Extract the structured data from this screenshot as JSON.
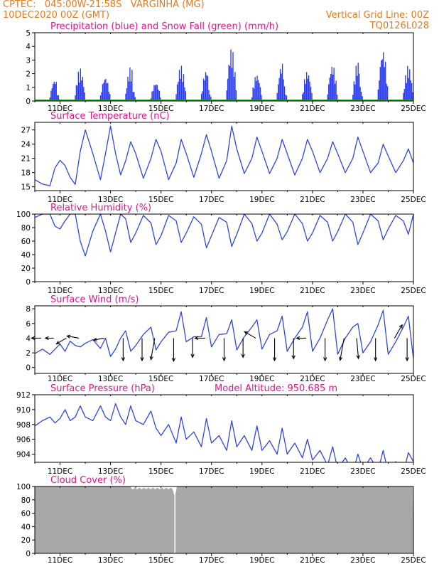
{
  "header": {
    "line1_left": "CPTEC:   045:00W-21:58S   VARGINHA (MG)",
    "line2_left": "10DEC2020 00Z (GMT)",
    "line2_right": "Vertical Grid Line: 00Z",
    "line3_right": "TQ0126L028"
  },
  "colors": {
    "header": "#e8781e",
    "title": "#e0148c",
    "line": "#3046e0",
    "precip": "#2a3af0",
    "snow": "#1aa01a",
    "cloud": "#a8a8a8",
    "frame": "#000000"
  },
  "x_ticks": [
    "11DEC",
    "13DEC",
    "15DEC",
    "17DEC",
    "19DEC",
    "21DEC",
    "23DEC",
    "25DEC"
  ],
  "chart_data": [
    {
      "id": "precip",
      "type": "bar",
      "title": "Precipitation (blue) and Snow Fall (green) (mm/h)",
      "ylim": [
        0,
        5
      ],
      "yticks": [
        "0",
        "1",
        "2",
        "3",
        "4",
        "5"
      ],
      "ytick_values": [
        0,
        1,
        2,
        3,
        4,
        5
      ],
      "xlim_days": [
        10,
        25
      ],
      "day_peaks": [
        {
          "day": 10,
          "value": 1.6
        },
        {
          "day": 11,
          "value": 2.4
        },
        {
          "day": 12,
          "value": 1.8
        },
        {
          "day": 13,
          "value": 2.5
        },
        {
          "day": 14,
          "value": 1.4
        },
        {
          "day": 15,
          "value": 2.6
        },
        {
          "day": 16,
          "value": 2.3
        },
        {
          "day": 17,
          "value": 3.9
        },
        {
          "day": 18,
          "value": 2.0
        },
        {
          "day": 19,
          "value": 2.8
        },
        {
          "day": 20,
          "value": 2.2
        },
        {
          "day": 21,
          "value": 2.7
        },
        {
          "day": 22,
          "value": 2.9
        },
        {
          "day": 23,
          "value": 3.8
        },
        {
          "day": 24,
          "value": 2.6
        }
      ],
      "snow": 0
    },
    {
      "id": "temp",
      "type": "line",
      "title": "Surface Temperature (nC)",
      "ylim": [
        14.2,
        28.6
      ],
      "yticks": [
        "15",
        "18",
        "21",
        "24",
        "27"
      ],
      "ytick_values": [
        15,
        18,
        21,
        24,
        27
      ],
      "x_days": [
        10.0,
        10.3,
        10.6,
        10.8,
        11.0,
        11.2,
        11.4,
        11.6,
        11.8,
        12.0,
        12.3,
        12.6,
        12.8,
        13.0,
        13.2,
        13.4,
        13.6,
        13.8,
        14.0,
        14.3,
        14.6,
        14.8,
        15.0,
        15.3,
        15.6,
        15.8,
        16.0,
        16.3,
        16.6,
        16.8,
        17.0,
        17.3,
        17.6,
        17.8,
        18.0,
        18.3,
        18.6,
        18.8,
        19.0,
        19.3,
        19.6,
        19.8,
        20.0,
        20.3,
        20.6,
        20.8,
        21.0,
        21.3,
        21.6,
        21.8,
        22.0,
        22.3,
        22.6,
        22.8,
        23.0,
        23.3,
        23.6,
        23.8,
        24.0,
        24.3,
        24.6,
        24.8,
        25.0
      ],
      "values": [
        16.5,
        15.6,
        15.2,
        19.0,
        20.6,
        19.5,
        17.0,
        15.5,
        22.5,
        27.0,
        22.0,
        16.5,
        22.0,
        27.8,
        22.0,
        17.5,
        20.5,
        24.5,
        22.0,
        16.8,
        21.0,
        25.0,
        22.5,
        16.5,
        20.0,
        25.0,
        22.0,
        17.0,
        22.0,
        26.0,
        22.5,
        16.8,
        20.5,
        27.8,
        23.0,
        17.8,
        21.0,
        25.5,
        22.5,
        17.8,
        21.0,
        25.0,
        22.0,
        17.5,
        21.0,
        25.0,
        22.5,
        18.0,
        21.0,
        24.5,
        22.0,
        18.0,
        21.0,
        25.5,
        22.5,
        18.0,
        20.0,
        24.0,
        21.5,
        18.0,
        20.5,
        23.0,
        20.0
      ]
    },
    {
      "id": "rh",
      "type": "line",
      "title": "Relative Humidity (%)",
      "ylim": [
        0,
        100
      ],
      "yticks": [
        "0",
        "20",
        "40",
        "60",
        "80",
        "100"
      ],
      "ytick_values": [
        0,
        20,
        40,
        60,
        80,
        100
      ],
      "x_days": [
        10.0,
        10.3,
        10.6,
        10.8,
        11.0,
        11.2,
        11.4,
        11.6,
        11.8,
        12.0,
        12.3,
        12.6,
        12.8,
        13.0,
        13.2,
        13.4,
        13.6,
        13.8,
        14.0,
        14.3,
        14.6,
        14.8,
        15.0,
        15.3,
        15.6,
        15.8,
        16.0,
        16.3,
        16.6,
        16.8,
        17.0,
        17.3,
        17.6,
        17.8,
        18.0,
        18.3,
        18.6,
        18.8,
        19.0,
        19.3,
        19.6,
        19.8,
        20.0,
        20.3,
        20.6,
        20.8,
        21.0,
        21.3,
        21.6,
        21.8,
        22.0,
        22.3,
        22.6,
        22.8,
        23.0,
        23.3,
        23.6,
        23.8,
        24.0,
        24.3,
        24.6,
        24.8,
        25.0
      ],
      "values": [
        95,
        100,
        100,
        82,
        78,
        90,
        100,
        100,
        60,
        38,
        75,
        100,
        75,
        44,
        72,
        100,
        93,
        58,
        72,
        98,
        87,
        55,
        68,
        98,
        90,
        58,
        72,
        96,
        85,
        50,
        68,
        95,
        88,
        52,
        70,
        100,
        86,
        60,
        72,
        100,
        85,
        62,
        74,
        100,
        86,
        60,
        72,
        98,
        88,
        60,
        74,
        100,
        88,
        55,
        72,
        100,
        90,
        62,
        78,
        98,
        90,
        70,
        100
      ]
    },
    {
      "id": "wind",
      "type": "line",
      "title": "Surface Wind (m/s)",
      "ylim": [
        -0.8,
        8.4
      ],
      "yticks": [
        "0",
        "2",
        "4",
        "6",
        "8"
      ],
      "ytick_values": [
        0,
        2,
        4,
        6,
        8
      ],
      "x_days": [
        10.0,
        10.3,
        10.6,
        10.8,
        11.0,
        11.2,
        11.4,
        11.6,
        11.8,
        12.0,
        12.3,
        12.6,
        12.8,
        13.0,
        13.2,
        13.4,
        13.6,
        13.8,
        14.0,
        14.3,
        14.6,
        14.8,
        15.0,
        15.3,
        15.6,
        15.8,
        16.0,
        16.3,
        16.6,
        16.8,
        17.0,
        17.3,
        17.6,
        17.8,
        18.0,
        18.3,
        18.6,
        18.8,
        19.0,
        19.3,
        19.6,
        19.8,
        20.0,
        20.3,
        20.6,
        20.8,
        21.0,
        21.3,
        21.6,
        21.8,
        22.0,
        22.3,
        22.6,
        22.8,
        23.0,
        23.3,
        23.6,
        23.8,
        24.0,
        24.3,
        24.6,
        24.8,
        25.0
      ],
      "values": [
        1.9,
        2.5,
        1.8,
        2.5,
        3.2,
        2.2,
        3.6,
        3.0,
        2.8,
        3.3,
        3.8,
        2.6,
        4.0,
        1.5,
        2.5,
        4.0,
        5.0,
        2.2,
        3.0,
        4.5,
        5.5,
        2.4,
        3.5,
        4.8,
        5.0,
        7.6,
        3.5,
        4.2,
        4.2,
        6.8,
        2.8,
        4.5,
        4.6,
        6.5,
        2.4,
        4.2,
        5.5,
        6.5,
        2.5,
        4.5,
        5.0,
        7.0,
        2.2,
        4.0,
        5.5,
        7.6,
        2.2,
        4.0,
        6.5,
        8.0,
        1.8,
        4.0,
        5.5,
        6.0,
        2.0,
        3.5,
        5.8,
        7.8,
        1.8,
        3.5,
        5.5,
        7.0,
        1.2
      ],
      "vectors": [
        {
          "day": 10.25,
          "speed": 1.5,
          "dir": 90
        },
        {
          "day": 10.75,
          "speed": 1.3,
          "dir": 90
        },
        {
          "day": 11.25,
          "speed": 1.8,
          "dir": 60
        },
        {
          "day": 11.75,
          "speed": 1.9,
          "dir": 100
        },
        {
          "day": 12.75,
          "speed": 1.7,
          "dir": 80
        },
        {
          "day": 13.5,
          "speed": 3.5,
          "dir": 0
        },
        {
          "day": 14.25,
          "speed": 3.5,
          "dir": 0
        },
        {
          "day": 14.75,
          "speed": 3.4,
          "dir": 10
        },
        {
          "day": 15.5,
          "speed": 3.6,
          "dir": 0
        },
        {
          "day": 16.25,
          "speed": 3.0,
          "dir": 0
        },
        {
          "day": 16.75,
          "speed": 1.6,
          "dir": 90
        },
        {
          "day": 17.5,
          "speed": 3.5,
          "dir": 0
        },
        {
          "day": 18.25,
          "speed": 3.0,
          "dir": 0
        },
        {
          "day": 18.75,
          "speed": 2.0,
          "dir": 120
        },
        {
          "day": 19.5,
          "speed": 3.5,
          "dir": 0
        },
        {
          "day": 20.25,
          "speed": 3.2,
          "dir": 0
        },
        {
          "day": 20.75,
          "speed": 1.5,
          "dir": 90
        },
        {
          "day": 21.5,
          "speed": 3.5,
          "dir": 0
        },
        {
          "day": 22.25,
          "speed": 3.5,
          "dir": 10
        },
        {
          "day": 22.75,
          "speed": 3.2,
          "dir": 355
        },
        {
          "day": 23.5,
          "speed": 3.5,
          "dir": 0
        },
        {
          "day": 24.25,
          "speed": 2.4,
          "dir": 210
        },
        {
          "day": 24.75,
          "speed": 3.5,
          "dir": 0
        }
      ]
    },
    {
      "id": "pres",
      "type": "line",
      "title": "Surface Pressure (hPa)",
      "annotation": "Model Altitude:  950.685  m",
      "ylim": [
        902.9,
        912
      ],
      "yticks": [
        "904",
        "906",
        "908",
        "910",
        "912"
      ],
      "ytick_values": [
        904,
        906,
        908,
        910,
        912
      ],
      "x_days": [
        10.0,
        10.3,
        10.6,
        10.8,
        11.0,
        11.2,
        11.4,
        11.6,
        11.8,
        12.0,
        12.3,
        12.6,
        12.8,
        13.0,
        13.2,
        13.4,
        13.6,
        13.8,
        14.0,
        14.3,
        14.6,
        14.8,
        15.0,
        15.3,
        15.6,
        15.8,
        16.0,
        16.3,
        16.6,
        16.8,
        17.0,
        17.3,
        17.6,
        17.8,
        18.0,
        18.3,
        18.6,
        18.8,
        19.0,
        19.3,
        19.6,
        19.8,
        20.0,
        20.3,
        20.6,
        20.8,
        21.0,
        21.3,
        21.6,
        21.8,
        22.0,
        22.3,
        22.6,
        22.8,
        23.0,
        23.3,
        23.6,
        23.8,
        24.0,
        24.3,
        24.6,
        24.8,
        25.0
      ],
      "values": [
        907.8,
        908.5,
        909.0,
        908.2,
        908.8,
        910.0,
        908.5,
        909.0,
        910.5,
        909.0,
        908.5,
        910.5,
        909.0,
        908.5,
        910.8,
        909.0,
        908.0,
        910.5,
        908.5,
        908.0,
        909.8,
        907.5,
        906.5,
        908.0,
        905.5,
        909.0,
        906.0,
        907.0,
        905.0,
        908.8,
        905.5,
        906.5,
        904.5,
        908.5,
        905.0,
        906.5,
        904.5,
        907.8,
        904.5,
        905.8,
        904.0,
        907.5,
        904.0,
        905.5,
        903.5,
        906.0,
        903.2,
        904.5,
        902.5,
        905.0,
        902.0,
        903.5,
        901.5,
        904.0,
        902.0,
        903.5,
        901.8,
        904.5,
        901.5,
        903.0,
        901.5,
        904.2,
        903.0
      ]
    },
    {
      "id": "cloud",
      "type": "area",
      "title": "Cloud Cover (%)",
      "ylim": [
        0,
        100
      ],
      "yticks": [
        "0",
        "20",
        "40",
        "60",
        "80",
        "100"
      ],
      "ytick_values": [
        0,
        20,
        40,
        60,
        80,
        100
      ],
      "level": 100,
      "dip_day": 15.55
    }
  ]
}
